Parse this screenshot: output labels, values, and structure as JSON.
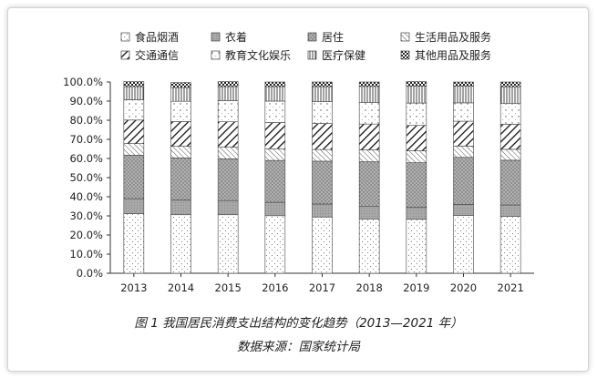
{
  "chart_data": {
    "type": "bar",
    "stacked": true,
    "categories": [
      "2013",
      "2014",
      "2015",
      "2016",
      "2017",
      "2018",
      "2019",
      "2020",
      "2021"
    ],
    "yticks": [
      "0.0%",
      "10.0%",
      "20.0%",
      "30.0%",
      "40.0%",
      "50.0%",
      "60.0%",
      "70.0%",
      "80.0%",
      "90.0%",
      "100.0%"
    ],
    "ylim": [
      0,
      100
    ],
    "grid": false,
    "legend_position": "top",
    "series": [
      {
        "name": "食品烟酒",
        "pattern": "dots",
        "values": [
          31.2,
          30.6,
          30.6,
          30.1,
          29.4,
          28.4,
          28.2,
          30.2,
          29.8
        ]
      },
      {
        "name": "衣着",
        "pattern": "gray",
        "values": [
          7.8,
          7.6,
          7.4,
          7.0,
          6.8,
          6.5,
          6.2,
          5.8,
          5.9
        ]
      },
      {
        "name": "居住",
        "pattern": "gray-dots",
        "values": [
          22.7,
          22.1,
          21.8,
          21.9,
          22.4,
          23.4,
          23.4,
          24.6,
          23.4
        ]
      },
      {
        "name": "生活用品及服务",
        "pattern": "thin-diag",
        "values": [
          6.1,
          6.1,
          6.1,
          6.1,
          6.1,
          6.2,
          6.2,
          5.9,
          5.7
        ]
      },
      {
        "name": "交通通信",
        "pattern": "bold-diag",
        "values": [
          12.3,
          12.9,
          13.3,
          13.7,
          13.6,
          13.5,
          13.3,
          13.0,
          13.1
        ]
      },
      {
        "name": "教育文化娱乐",
        "pattern": "sparse-dots",
        "values": [
          10.6,
          10.6,
          11.0,
          11.2,
          11.4,
          11.2,
          11.7,
          9.6,
          10.8
        ]
      },
      {
        "name": "医疗保健",
        "pattern": "vlines",
        "values": [
          6.9,
          7.2,
          7.4,
          7.6,
          7.9,
          8.5,
          8.8,
          8.7,
          8.8
        ]
      },
      {
        "name": "其他用品及服务",
        "pattern": "checker",
        "values": [
          2.6,
          2.6,
          2.6,
          2.4,
          2.4,
          2.3,
          2.4,
          2.2,
          2.5
        ]
      }
    ],
    "caption": "图 1 我国居民消费支出结构的变化趋势（2013—2021 年）",
    "source": "数据来源：国家统计局"
  }
}
